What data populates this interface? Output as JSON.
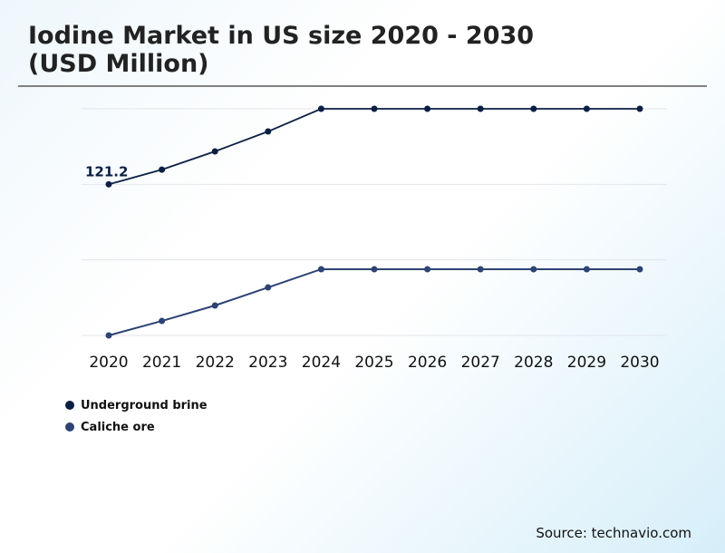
{
  "chart_data": {
    "type": "line",
    "title": "Iodine Market in US size 2020 - 2030 (USD Million)",
    "title_lines": [
      "Iodine Market in US size 2020 - 2030",
      "(USD Million)"
    ],
    "categories": [
      "2020",
      "2021",
      "2022",
      "2023",
      "2024",
      "2025",
      "2026",
      "2027",
      "2028",
      "2029",
      "2030"
    ],
    "series": [
      {
        "name": "Underground brine",
        "color": "#0b1f44",
        "values": [
          121.2,
          133.0,
          147.6,
          163.6,
          181.8,
          181.8,
          181.8,
          181.8,
          181.8,
          181.8,
          181.8
        ]
      },
      {
        "name": "Caliche ore",
        "color": "#2c4373",
        "values": [
          0.0,
          11.6,
          24.0,
          38.5,
          53.1,
          53.1,
          53.1,
          53.1,
          53.1,
          53.1,
          53.1
        ]
      }
    ],
    "annotations": [
      {
        "series": 0,
        "category": "2020",
        "label": "121.2"
      }
    ],
    "ylim": [
      0,
      181.8
    ],
    "yticks_shown": false,
    "grid": true,
    "legend": "bottom-left"
  },
  "source": "Source: technavio.com"
}
